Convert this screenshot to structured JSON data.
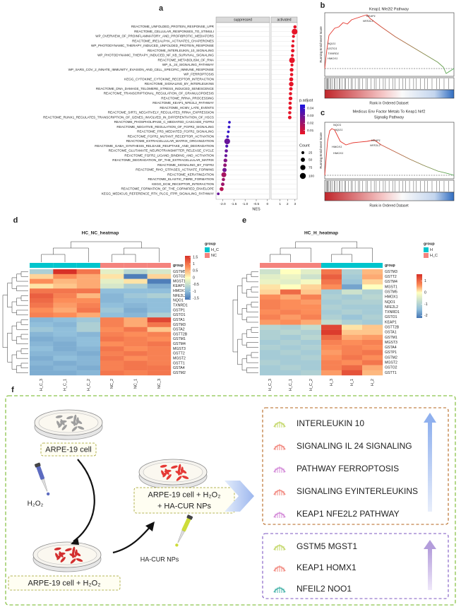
{
  "panels": {
    "a": {
      "label": "a",
      "facets": [
        "suppressed",
        "activated"
      ],
      "pathways": [
        "REACTOME_UNFOLDED_PROTEIN_RESPONSE_UPR",
        "REACTOME_CELLULAR_RESPONSES_TO_STIMULI",
        "WP_OVERVIEW_OF_PROINFLAMMATORY_AND_PROFIBROTIC_MEDIATORS",
        "REACTOME_IRE1ALPHA_ACTIVATES_CHAPERONES",
        "WP_PHOTODYNAMIC_THERAPY_INDUCED_UNFOLDED_PROTEIN_RESPONSE",
        "REACTOME_INTERLEUKIN_10_SIGNALING",
        "WP_PHOTODYNAMIC_THERAPY_INDUCED_NF_KB_SURVIVAL_SIGNALING",
        "REACTOME_METABOLISM_OF_RNA",
        "WP_IL_24_SIGNALING_PATHWAY",
        "WP_SARS_COV_2_INNATE_IMMUNITY_EVASION_AND_CELL_SPECIFIC_IMMUNE_RESPONSE",
        "WP_FERROPTOSIS",
        "KEGG_CYTOKINE_CYTOKINE_RECEPTOR_INTERACTION",
        "REACTOME_SIGNALING_BY_INTERLEUKINS",
        "REACTOME_DNA_DAMAGE_TELOMERE_STRESS_INDUCED_SENESCENCE",
        "REACTOME_TRANSCRIPTIONAL_REGULATION_OF_GRANULOPOIESIS",
        "REACTOME_RRNA_PROCESSING",
        "REACTOME_KEAP1_NFE2L2_PATHWAY",
        "REACTOME_HCMV_LATE_EVENTS",
        "REACTOME_SIRT1_NEGATIVELY_REGULATES_RRNA_EXPRESSION",
        "REACTOME_RUNX1_REGULATES_TRANSCRIPTION_OF_GENES_INVOLVED_IN_DIFFERENTIATION_OF_HSCS",
        "REACTOME_PHOSPHOLIPASE_C_MEDIATED_CASCADE_FGFR2",
        "REACTOME_NEGATIVE_REGULATION_OF_FGFR2_SIGNALING",
        "REACTOME_FRS_MEDIATED_FGFR2_SIGNALING",
        "REACTOME_FGFR2_MUTANT_RECEPTOR_ACTIVATION",
        "REACTOME_EXTRACELLULAR_MATRIX_ORGANIZATION",
        "REACTOME_GABA_SYNTHESIS_RELEASE_REUPTAKE_AND_DEGRADATION",
        "REACTOME_GLUTAMATE_NEUROTRANSMITTER_RELEASE_CYCLE",
        "REACTOME_FGFR2_LIGAND_BINDING_AND_ACTIVATION",
        "REACTOME_DEGRADATION_OF_THE_EXTRACELLULAR_MATRIX",
        "REACTOME_SIGNALING_BY_FGFR2",
        "REACTOME_RHO_GTPASES_ACTIVATE_FORMINS",
        "REACTOME_KERATINIZATION",
        "REACTOME_ELASTIC_FIBRE_FORMATION",
        "KEGG_ECM_RECEPTOR_INTERACTION",
        "REACTOME_FORMATION_OF_THE_CORNIFIED_ENVELOPE",
        "KEGG_MEDICUS_REFERENCE_RTK_PLCG_ITPR_SIGNALING_PATHWAY"
      ],
      "nes": [
        3.0,
        2.95,
        2.8,
        2.75,
        2.7,
        2.7,
        2.65,
        2.6,
        2.6,
        2.55,
        2.55,
        2.5,
        2.5,
        2.45,
        2.4,
        2.4,
        2.35,
        2.35,
        2.3,
        2.3,
        -1.7,
        -1.72,
        -1.75,
        -1.78,
        -1.8,
        -1.82,
        -1.84,
        -1.86,
        -1.88,
        -1.9,
        -1.92,
        -1.95,
        -1.97,
        -2.0,
        -2.05,
        -2.2
      ],
      "count": [
        30,
        95,
        25,
        20,
        30,
        35,
        25,
        90,
        25,
        40,
        30,
        45,
        60,
        35,
        30,
        40,
        30,
        35,
        30,
        35,
        20,
        20,
        20,
        20,
        95,
        25,
        30,
        25,
        40,
        35,
        50,
        70,
        30,
        35,
        45,
        20
      ],
      "p_adjust": [
        0.006,
        0.006,
        0.006,
        0.006,
        0.006,
        0.006,
        0.006,
        0.006,
        0.006,
        0.006,
        0.006,
        0.006,
        0.006,
        0.006,
        0.006,
        0.006,
        0.006,
        0.006,
        0.006,
        0.006,
        0.04,
        0.04,
        0.04,
        0.038,
        0.03,
        0.035,
        0.03,
        0.03,
        0.025,
        0.022,
        0.028,
        0.018,
        0.02,
        0.02,
        0.015,
        0.03
      ],
      "xlim_suppressed": [
        -2.3,
        0.1
      ],
      "xlim_activated": [
        -0.2,
        3.3
      ],
      "xticks_suppressed": [
        {
          "value": -2,
          "label": "-2.0"
        },
        {
          "value": -1.5,
          "label": "-1.5"
        },
        {
          "value": -1,
          "label": "-1.0"
        },
        {
          "value": -0.5,
          "label": "-0.5"
        },
        0
      ],
      "xticks_activated": [
        1,
        2,
        3
      ],
      "x_label": "NES",
      "p_adjust_title": "p.adjust",
      "p_adjust_lim": [
        0.005,
        0.045
      ],
      "p_adjust_ticks": [
        0.04,
        0.03,
        0.02,
        0.01
      ],
      "count_title": "Count",
      "count_ticks": [
        25,
        50,
        75,
        100
      ]
    },
    "b": {
      "label": "b",
      "title": "Keap1 Nfe2l2 Pathway",
      "y_label": "Running Enrichment Score",
      "x_label": "Rank in Ordered Dataset",
      "genes": [
        "KEAP1",
        "NFE2L2",
        "NQO1",
        "GSTO1",
        "TXNRD1",
        "HMOX1"
      ]
    },
    "c": {
      "label": "c",
      "title_lines": [
        "Medicus Env Factor Metals To Keap1 Nrf2",
        "Signalig Pathway"
      ],
      "y_label": "Running Enrichment Score",
      "x_label": "Rank in Ordered Dataset",
      "genes": [
        "NQO1",
        "NQO1",
        "HMOX1",
        "HMOX1",
        "KEAP1",
        "NFE2L2"
      ]
    },
    "d": {
      "label": "d",
      "title": "HC_NC_heatmap",
      "columns": [
        "H_C_3",
        "H_C_1",
        "H_C_2",
        "NC_2",
        "NC_1",
        "NC_3"
      ],
      "column_colors": [
        "#00c5cd",
        "#00c5cd",
        "#00c5cd",
        "#f4837d",
        "#f4837d",
        "#f4837d"
      ],
      "rows": [
        "GSTM5",
        "GSTO2",
        "MGST1",
        "KEAP1",
        "HMOX1",
        "NFE2L2",
        "NQO1",
        "TXNRD1",
        "GSTP1",
        "GSTO1",
        "GSTA1",
        "GSTM3",
        "GSTA2",
        "GSTT2B",
        "GSTM1",
        "GSTM4",
        "MGST3",
        "GSTT2",
        "MGST2",
        "GSTT1",
        "GSTA4",
        "GSTM2"
      ],
      "matrix": [
        [
          -0.6,
          1.6,
          1.0,
          -0.2,
          -0.5,
          -0.3
        ],
        [
          0.3,
          0.8,
          0.6,
          0.2,
          -1.5,
          0.3
        ],
        [
          0.8,
          0.5,
          0.6,
          -0.2,
          0.2,
          -1.5
        ],
        [
          0.2,
          0.4,
          0.6,
          -0.3,
          -0.6,
          -1.0
        ],
        [
          1.0,
          1.0,
          1.0,
          -0.8,
          -0.8,
          -0.8
        ],
        [
          1.2,
          0.9,
          0.5,
          -0.9,
          -0.7,
          -0.6
        ],
        [
          1.1,
          0.8,
          0.8,
          -0.9,
          -0.8,
          -0.8
        ],
        [
          1.0,
          0.7,
          0.9,
          -0.8,
          -0.9,
          -0.8
        ],
        [
          0.8,
          0.6,
          1.0,
          -0.7,
          -1.0,
          -0.8
        ],
        [
          0.9,
          0.8,
          0.6,
          -0.8,
          -0.9,
          -0.6
        ],
        [
          -0.9,
          -0.8,
          -0.7,
          0.9,
          0.6,
          1.4
        ],
        [
          -0.8,
          -0.9,
          -0.6,
          0.9,
          0.6,
          1.0
        ],
        [
          -0.7,
          -0.8,
          -0.6,
          0.8,
          1.0,
          0.4
        ],
        [
          -0.9,
          -0.8,
          -0.9,
          0.9,
          0.8,
          0.9
        ],
        [
          -1.0,
          -0.9,
          -0.8,
          1.0,
          0.9,
          0.8
        ],
        [
          -0.9,
          -1.0,
          -0.8,
          0.8,
          0.9,
          1.0
        ],
        [
          -0.8,
          -1.0,
          -0.9,
          1.0,
          0.8,
          0.9
        ],
        [
          -0.9,
          -0.9,
          -1.0,
          0.9,
          1.0,
          0.9
        ],
        [
          -1.0,
          -0.8,
          -0.9,
          1.0,
          0.8,
          0.9
        ],
        [
          -0.9,
          -1.0,
          -0.9,
          0.9,
          1.0,
          0.9
        ],
        [
          -1.0,
          -0.9,
          -1.0,
          0.9,
          1.0,
          1.0
        ],
        [
          -1.0,
          -1.0,
          -0.9,
          1.0,
          0.9,
          1.0
        ]
      ],
      "color_lim": [
        -1.6,
        1.6
      ],
      "legend_ticks": [
        1.5,
        1,
        0.5,
        0,
        -0.5,
        -1,
        -1.5
      ],
      "group_title": "group",
      "groups": [
        {
          "name": "H_C",
          "color": "#00c5cd"
        },
        {
          "name": "NC",
          "color": "#f4837d"
        }
      ]
    },
    "e": {
      "label": "e",
      "title": "HC_H_heatmap",
      "columns": [
        "H_C_3",
        "H_C_1",
        "H_C_2",
        "H_3",
        "H_1",
        "H_2"
      ],
      "column_colors": [
        "#f4837d",
        "#f4837d",
        "#f4837d",
        "#00c5cd",
        "#00c5cd",
        "#00c5cd"
      ],
      "rows": [
        "GSTM3",
        "GSTT2",
        "GSTM4",
        "MGST1",
        "GSTM5",
        "HMOX1",
        "NQO1",
        "NFE2L2",
        "TXNRD1",
        "GSTO1",
        "KEAP1",
        "GSTT2B",
        "GSTA1",
        "GSTM1",
        "MGST3",
        "GSTA4",
        "GSTP1",
        "GSTM2",
        "MGST2",
        "GSTO2",
        "GSTT1"
      ],
      "matrix": [
        [
          -0.5,
          0.0,
          -0.3,
          1.0,
          -0.8,
          0.5
        ],
        [
          -0.3,
          -0.2,
          -0.5,
          1.2,
          -0.9,
          0.6
        ],
        [
          -0.2,
          -0.3,
          -0.1,
          1.0,
          -1.0,
          0.3
        ],
        [
          0.2,
          0.0,
          0.3,
          0.8,
          -1.5,
          0.0
        ],
        [
          0.3,
          1.1,
          0.4,
          -0.9,
          -0.5,
          -0.8
        ],
        [
          0.8,
          0.6,
          0.9,
          -0.8,
          -0.9,
          -0.7
        ],
        [
          0.9,
          0.8,
          0.7,
          -0.9,
          -0.8,
          -0.8
        ],
        [
          0.9,
          0.8,
          0.8,
          -0.8,
          -0.9,
          -0.9
        ],
        [
          0.8,
          0.9,
          0.8,
          -0.9,
          -0.8,
          -0.9
        ],
        [
          0.9,
          0.7,
          0.9,
          -0.8,
          -1.0,
          -0.8
        ],
        [
          0.7,
          0.8,
          0.6,
          -0.6,
          -0.8,
          -0.9
        ],
        [
          -0.7,
          -0.8,
          -0.6,
          1.4,
          0.2,
          0.4
        ],
        [
          -0.8,
          -0.7,
          -0.8,
          1.5,
          0.4,
          0.4
        ],
        [
          -0.8,
          -0.9,
          -0.7,
          1.1,
          0.6,
          0.7
        ],
        [
          -0.9,
          -0.8,
          -0.9,
          0.9,
          0.8,
          0.9
        ],
        [
          -0.8,
          -0.9,
          -0.8,
          0.8,
          0.9,
          0.8
        ],
        [
          -0.9,
          -0.8,
          -0.9,
          0.7,
          0.9,
          1.0
        ],
        [
          -0.9,
          -0.9,
          -0.8,
          0.8,
          1.0,
          0.8
        ],
        [
          -0.8,
          -0.9,
          -0.9,
          0.9,
          0.8,
          1.0
        ],
        [
          -0.9,
          -0.8,
          -0.9,
          0.9,
          1.1,
          0.6
        ],
        [
          -0.9,
          -0.9,
          -0.8,
          0.7,
          1.3,
          0.5
        ]
      ],
      "color_lim": [
        -2.2,
        1.6
      ],
      "legend_ticks": [
        1,
        0,
        -1,
        -2
      ],
      "group_title": "group",
      "groups": [
        {
          "name": "H",
          "color": "#00c5cd"
        },
        {
          "name": "H_C",
          "color": "#f4837d"
        }
      ]
    },
    "f": {
      "label": "f",
      "dish_labels": [
        "ARPE-19 cell",
        "ARPE-19 cell + H₂O₂"
      ],
      "treated_label_lines": [
        "ARPE-19 cell + H₂O₂",
        "+ HA-CUR NPs"
      ],
      "reagents": [
        "H₂O₂",
        "HA-CUR NPs"
      ],
      "pathways": [
        "INTERLEUKIN 10",
        "SIGNALING IL 24 SIGNALING",
        "PATHWAY FERROPTOSIS",
        "SIGNALING EYINTERLEUKINS",
        "KEAP1 NFE2L2 PATHWAY"
      ],
      "genes": [
        "GSTM5 MGST1",
        "KEAP1 HOMX1",
        "NFEIL2 NOO1"
      ]
    }
  }
}
